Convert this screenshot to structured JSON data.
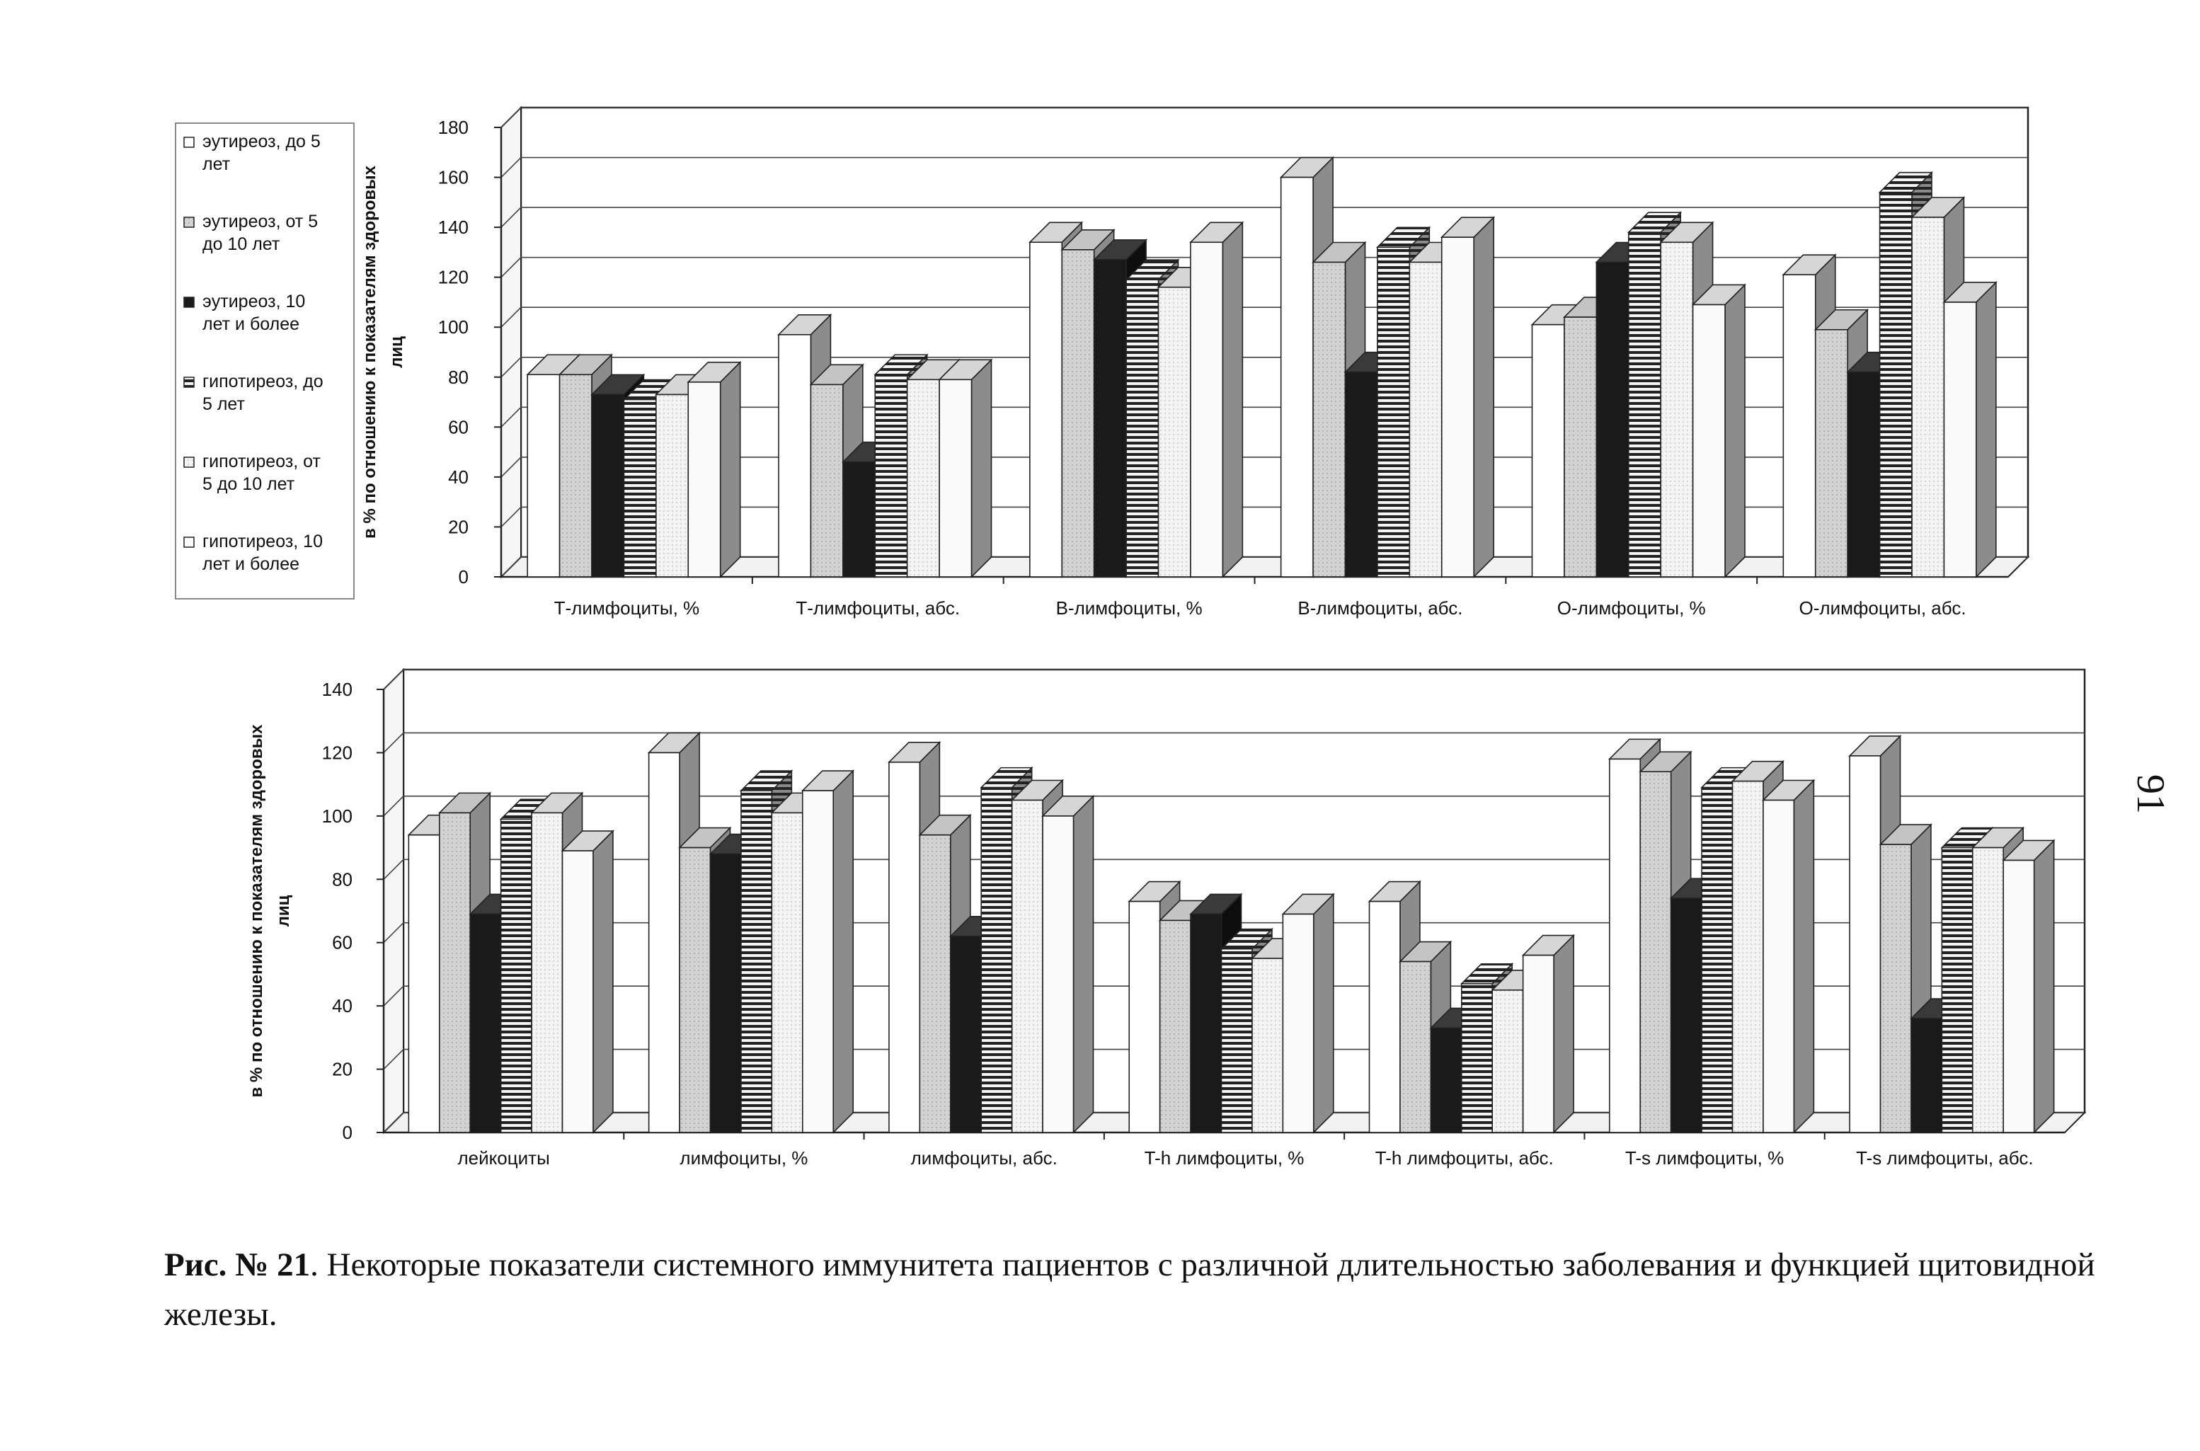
{
  "legend": {
    "items": [
      {
        "label": "эутиреоз, до 5 лет",
        "lines": [
          "эутиреоз, до 5",
          "лет"
        ],
        "pattern": "white"
      },
      {
        "label": "эутиреоз, от 5 до 10 лет",
        "lines": [
          "эутиреоз, от 5",
          "до 10 лет"
        ],
        "pattern": "lightgray"
      },
      {
        "label": "эутиреоз, 10 лет и более",
        "lines": [
          "эутиреоз, 10",
          "лет и более"
        ],
        "pattern": "black"
      },
      {
        "label": "гипотиреоз, до 5 лет",
        "lines": [
          "гипотиреоз, до",
          "5 лет"
        ],
        "pattern": "hstripes"
      },
      {
        "label": "гипотиреоз, от 5 до 10 лет",
        "lines": [
          "гипотиреоз, от",
          "5 до 10 лет"
        ],
        "pattern": "dots"
      },
      {
        "label": "гипотиреоз, 10 лет и более",
        "lines": [
          "гипотиреоз, 10",
          "лет и более"
        ],
        "pattern": "white2"
      }
    ]
  },
  "chart_data": [
    {
      "type": "bar",
      "title": "",
      "ylabel": "в % по отношению к показателям здоровых лиц",
      "ylabel_lines": [
        "в % по отношению к показателям здоровых",
        "лиц"
      ],
      "ylim": [
        0,
        180
      ],
      "yticks": [
        0,
        20,
        40,
        60,
        80,
        100,
        120,
        140,
        160,
        180
      ],
      "grid": true,
      "categories": [
        "Т-лимфоциты, %",
        "Т-лимфоциты, абс.",
        "В-лимфоциты, %",
        "В-лимфоциты, абс.",
        "О-лимфоциты, %",
        "О-лимфоциты, абс."
      ],
      "series": [
        {
          "name": "эутиреоз, до 5 лет",
          "values": [
            81,
            97,
            134,
            160,
            101,
            121
          ]
        },
        {
          "name": "эутиреоз, от 5 до 10 лет",
          "values": [
            81,
            77,
            131,
            126,
            104,
            99
          ]
        },
        {
          "name": "эутиреоз, 10 лет и более",
          "values": [
            73,
            46,
            127,
            82,
            126,
            82
          ]
        },
        {
          "name": "гипотиреоз, до 5 лет",
          "values": [
            71,
            81,
            119,
            132,
            138,
            154
          ]
        },
        {
          "name": "гипотиреоз, от 5 до 10 лет",
          "values": [
            73,
            79,
            116,
            126,
            134,
            144
          ]
        },
        {
          "name": "гипотиреоз, 10 лет и более",
          "values": [
            78,
            79,
            134,
            136,
            109,
            110
          ]
        }
      ]
    },
    {
      "type": "bar",
      "title": "",
      "ylabel": "в % по отношению к показателям здоровых лиц",
      "ylabel_lines": [
        "в % по отношению к показателям здоровых",
        "лиц"
      ],
      "ylim": [
        0,
        140
      ],
      "yticks": [
        0,
        20,
        40,
        60,
        80,
        100,
        120,
        140
      ],
      "grid": true,
      "categories": [
        "лейкоциты",
        "лимфоциты, %",
        "лимфоциты, абс.",
        "T-h лимфоциты, %",
        "T-h лимфоциты, абс.",
        "T-s лимфоциты, %",
        "T-s лимфоциты, абс."
      ],
      "series": [
        {
          "name": "эутиреоз, до 5 лет",
          "values": [
            94,
            120,
            117,
            73,
            73,
            118,
            119
          ]
        },
        {
          "name": "эутиреоз, от 5 до 10 лет",
          "values": [
            101,
            90,
            94,
            67,
            54,
            114,
            91
          ]
        },
        {
          "name": "эутиреоз, 10 лет и более",
          "values": [
            69,
            88,
            62,
            69,
            33,
            74,
            36
          ]
        },
        {
          "name": "гипотиреоз, до 5 лет",
          "values": [
            99,
            108,
            109,
            58,
            47,
            109,
            90
          ]
        },
        {
          "name": "гипотиреоз, от 5 до 10 лет",
          "values": [
            101,
            101,
            105,
            55,
            45,
            111,
            90
          ]
        },
        {
          "name": "гипотиреоз, 10 лет и более",
          "values": [
            89,
            108,
            100,
            69,
            56,
            105,
            86
          ]
        }
      ]
    }
  ],
  "caption": {
    "lead": "Рис. № 21",
    "text": ". Некоторые показатели системного иммунитета пациентов с различной длительностью заболевания и функцией щитовидной железы."
  },
  "page_number": "91"
}
